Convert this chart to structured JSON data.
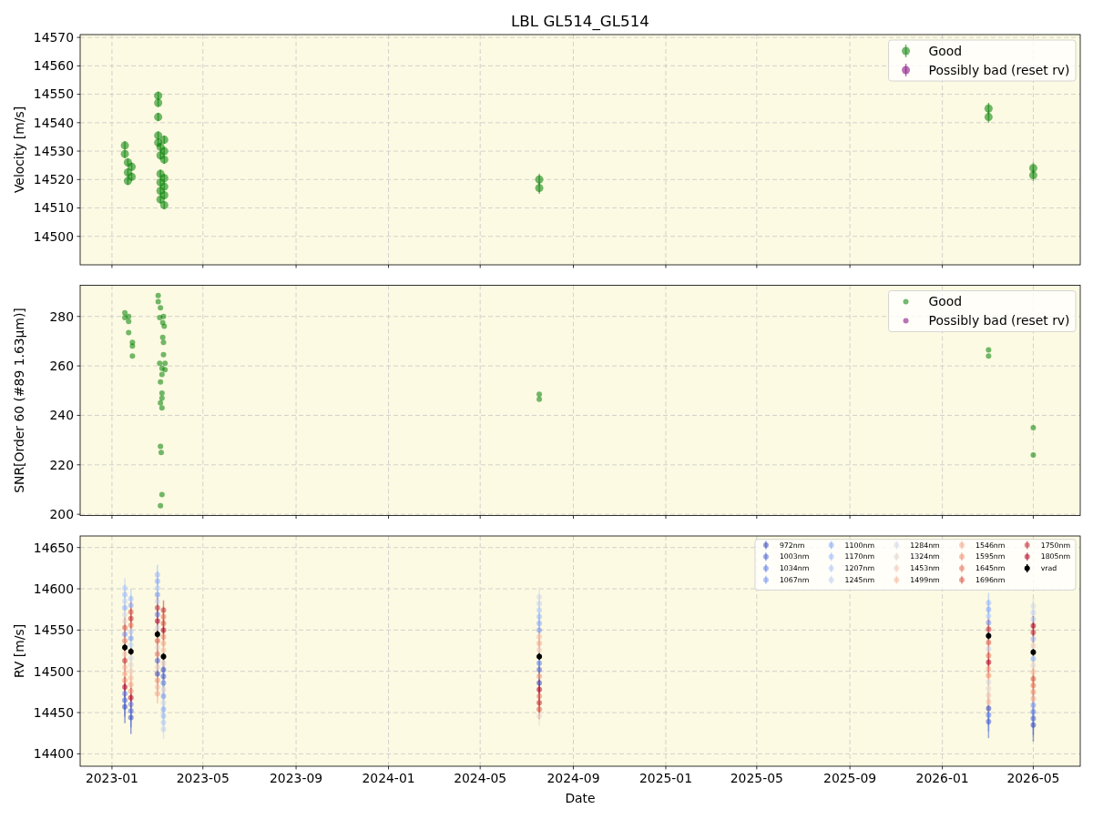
{
  "chart_data": [
    {
      "type": "scatter",
      "title": "LBL GL514_GL514",
      "ylabel": "Velocity [m/s]",
      "xlim": [
        "2022-11-20",
        "2026-07-02"
      ],
      "xticks": [
        "2023-01",
        "2023-05",
        "2023-09",
        "2024-01",
        "2024-05",
        "2024-09",
        "2025-01",
        "2025-05",
        "2025-09",
        "2026-01",
        "2026-05"
      ],
      "ylim": [
        14490,
        14571
      ],
      "yticks": [
        14500,
        14510,
        14520,
        14530,
        14540,
        14550,
        14560,
        14570
      ],
      "grid": true,
      "legend": "top right",
      "tick_labels": "y",
      "marker": "circle",
      "series": [
        {
          "name": "Good",
          "color": "#008000",
          "x": [
            "2023-01-18",
            "2023-01-18",
            "2023-01-22",
            "2023-01-22",
            "2023-01-22",
            "2023-01-27",
            "2023-01-27",
            "2023-03-03",
            "2023-03-03",
            "2023-03-03",
            "2023-03-03",
            "2023-03-03",
            "2023-03-06",
            "2023-03-06",
            "2023-03-06",
            "2023-03-06",
            "2023-03-06",
            "2023-03-06",
            "2023-03-11",
            "2023-03-11",
            "2023-03-11",
            "2023-03-11",
            "2023-03-11",
            "2023-03-11",
            "2023-03-11",
            "2024-07-18",
            "2024-07-18",
            "2026-03-03",
            "2026-03-03",
            "2026-05-01",
            "2026-05-01"
          ],
          "values": [
            14532,
            14529,
            14526,
            14522.5,
            14519.5,
            14524.5,
            14521,
            14549.5,
            14547,
            14542,
            14535.5,
            14533,
            14531.5,
            14528.5,
            14522,
            14519,
            14516,
            14513,
            14534,
            14530,
            14527,
            14520.5,
            14517.5,
            14514.5,
            14511,
            14520,
            14517,
            14545,
            14542,
            14524,
            14521.5
          ],
          "errors": [
            1.5,
            1.5,
            1.5,
            1.5,
            1.5,
            1.5,
            1.5,
            1.5,
            1.5,
            1.5,
            1.5,
            1.5,
            1.5,
            1.5,
            1.5,
            1.5,
            1.5,
            1.5,
            1.5,
            1.5,
            1.5,
            1.5,
            1.5,
            1.5,
            1.5,
            2,
            2,
            2,
            2,
            2,
            2
          ]
        },
        {
          "name": "Possibly bad (reset rv)",
          "color": "#800080"
        }
      ]
    },
    {
      "type": "scatter",
      "ylabel": "SNR[Order 60 (#89 1.63μm)]",
      "xlim": [
        "2022-11-20",
        "2026-07-02"
      ],
      "xticks": [
        "2023-01",
        "2023-05",
        "2023-09",
        "2024-01",
        "2024-05",
        "2024-09",
        "2025-01",
        "2025-05",
        "2025-09",
        "2026-01",
        "2026-05"
      ],
      "ylim": [
        199.5,
        292.6
      ],
      "yticks": [
        200,
        220,
        240,
        260,
        280
      ],
      "grid": true,
      "legend": "top right",
      "tick_labels": "y",
      "marker": "circle",
      "series": [
        {
          "name": "Good",
          "color": "#008000",
          "x": [
            "2023-01-18",
            "2023-01-18",
            "2023-01-23",
            "2023-01-23",
            "2023-01-23",
            "2023-01-28",
            "2023-01-28",
            "2023-01-28",
            "2023-03-03",
            "2023-03-03",
            "2023-03-06",
            "2023-03-05",
            "2023-03-05",
            "2023-03-06",
            "2023-03-06",
            "2023-03-06",
            "2023-03-10",
            "2023-03-09",
            "2023-03-09",
            "2023-03-08",
            "2023-03-08",
            "2023-03-08",
            "2023-03-08",
            "2023-03-06",
            "2023-03-08",
            "2023-03-08",
            "2023-03-07",
            "2023-03-11",
            "2023-03-10",
            "2023-03-10",
            "2023-03-12",
            "2023-03-12",
            "2024-07-18",
            "2024-07-18",
            "2026-03-03",
            "2026-03-03",
            "2026-05-01",
            "2026-05-01"
          ],
          "values": [
            281.5,
            279.5,
            280,
            278,
            273.5,
            269.5,
            268,
            264,
            288.5,
            286,
            283.5,
            279.5,
            261,
            253.5,
            227.5,
            203.5,
            280,
            277.5,
            271.5,
            259,
            256.5,
            249,
            247,
            245,
            243,
            208,
            225,
            276,
            269.5,
            264.5,
            261,
            258.5,
            248.5,
            246.5,
            266.5,
            264,
            235,
            224
          ]
        },
        {
          "name": "Possibly bad (reset rv)",
          "color": "#800080"
        }
      ]
    },
    {
      "type": "scatter",
      "xlabel": "Date",
      "ylabel": "RV [m/s]",
      "x": [
        "2023-01-18",
        "2023-01-26",
        "2023-03-02",
        "2023-03-10",
        "2024-07-18",
        "2026-03-03",
        "2026-05-01"
      ],
      "xlim": [
        "2022-11-20",
        "2026-07-02"
      ],
      "xticks": [
        "2023-01",
        "2023-05",
        "2023-09",
        "2024-01",
        "2024-05",
        "2024-09",
        "2025-01",
        "2025-05",
        "2025-09",
        "2026-01",
        "2026-05"
      ],
      "ylim": [
        14385,
        14664
      ],
      "yticks": [
        14400,
        14450,
        14500,
        14550,
        14600,
        14650
      ],
      "grid": true,
      "legend": "top right",
      "marker": "circle",
      "series": [
        {
          "name": "972nm",
          "color": "#3b4cc0",
          "values": [
            14457,
            14444,
            14497,
            14502,
            14486,
            14455,
            14435
          ],
          "errors": [
            20,
            20,
            20,
            20,
            20,
            20,
            20
          ]
        },
        {
          "name": "1003nm",
          "color": "#4d65d4",
          "values": [
            14465,
            14452,
            14513,
            14494,
            14502,
            14439,
            14443
          ],
          "errors": [
            20,
            20,
            20,
            20,
            20,
            20,
            20
          ]
        },
        {
          "name": "1034nm",
          "color": "#607fe8",
          "values": [
            14473,
            14460,
            14569,
            14486,
            14510,
            14447,
            14451
          ],
          "errors": [
            20,
            20,
            20,
            20,
            20,
            20,
            20
          ]
        },
        {
          "name": "1067nm",
          "color": "#7495f2",
          "values": [
            14545,
            14540,
            14593,
            14470,
            14550,
            14559,
            14459
          ],
          "errors": [
            20,
            20,
            20,
            20,
            20,
            20,
            20
          ]
        },
        {
          "name": "1100nm",
          "color": "#88abfc",
          "values": [
            14577,
            14580,
            14609,
            14454,
            14558,
            14575,
            14515
          ],
          "errors": [
            12,
            12,
            12,
            12,
            12,
            12,
            12
          ]
        },
        {
          "name": "1170nm",
          "color": "#9cbbfc",
          "values": [
            14593,
            14588,
            14617,
            14446,
            14566,
            14583,
            14539
          ],
          "errors": [
            12,
            12,
            12,
            12,
            12,
            12,
            12
          ]
        },
        {
          "name": "1207nm",
          "color": "#b0cafa",
          "values": [
            14601,
            14548,
            14601,
            14438,
            14574,
            14567,
            14563
          ],
          "errors": [
            12,
            12,
            12,
            12,
            12,
            12,
            12
          ]
        },
        {
          "name": "1245nm",
          "color": "#c3d4f1",
          "values": [
            14585,
            14532,
            14585,
            14430,
            14582,
            14527,
            14571
          ],
          "errors": [
            12,
            12,
            12,
            12,
            12,
            12,
            12
          ]
        },
        {
          "name": "1284nm",
          "color": "#d4d9e3",
          "values": [
            14569,
            14516,
            14553,
            14462,
            14590,
            14487,
            14579
          ],
          "errors": [
            12,
            12,
            12,
            12,
            12,
            12,
            12
          ]
        },
        {
          "name": "1324nm",
          "color": "#e3d6d1",
          "values": [
            14561,
            14508,
            14529,
            14478,
            14446,
            14479,
            14507
          ],
          "errors": [
            12,
            12,
            12,
            12,
            12,
            12,
            12
          ]
        },
        {
          "name": "1453nm",
          "color": "#eecbba",
          "values": [
            14521,
            14500,
            14505,
            14510,
            14526,
            14471,
            14531
          ],
          "errors": [
            12,
            12,
            12,
            12,
            12,
            12,
            12
          ]
        },
        {
          "name": "1499nm",
          "color": "#f5bca3",
          "values": [
            14505,
            14492,
            14481,
            14526,
            14542,
            14463,
            14499
          ],
          "errors": [
            12,
            12,
            12,
            12,
            12,
            12,
            12
          ]
        },
        {
          "name": "1546nm",
          "color": "#f4a88c",
          "values": [
            14497,
            14484,
            14473,
            14534,
            14534,
            14503,
            14467
          ],
          "errors": [
            12,
            12,
            12,
            12,
            12,
            12,
            12
          ]
        },
        {
          "name": "1595nm",
          "color": "#f19174",
          "values": [
            14489,
            14476,
            14489,
            14542,
            14494,
            14495,
            14475
          ],
          "errors": [
            12,
            12,
            12,
            12,
            12,
            12,
            12
          ]
        },
        {
          "name": "1645nm",
          "color": "#e7775e",
          "values": [
            14537,
            14556,
            14521,
            14566,
            14470,
            14519,
            14483
          ],
          "errors": [
            12,
            12,
            12,
            12,
            12,
            12,
            12
          ]
        },
        {
          "name": "1696nm",
          "color": "#db5a49",
          "values": [
            14553,
            14572,
            14537,
            14558,
            14454,
            14535,
            14491
          ],
          "errors": [
            12,
            12,
            12,
            12,
            12,
            12,
            12
          ]
        },
        {
          "name": "1750nm",
          "color": "#c72f37",
          "values": [
            14513,
            14564,
            14577,
            14574,
            14462,
            14551,
            14547
          ],
          "errors": [
            12,
            12,
            12,
            12,
            12,
            12,
            12
          ]
        },
        {
          "name": "1805nm",
          "color": "#b40426",
          "values": [
            14481,
            14468,
            14561,
            14550,
            14478,
            14511,
            14555
          ],
          "errors": [
            12,
            12,
            12,
            12,
            12,
            12,
            12
          ]
        },
        {
          "name": "vrad",
          "color": "#000000",
          "values": [
            14529,
            14524,
            14545,
            14518,
            14518,
            14543,
            14523
          ],
          "errors": [
            4,
            4,
            4,
            4,
            4,
            4,
            4
          ]
        }
      ]
    }
  ]
}
